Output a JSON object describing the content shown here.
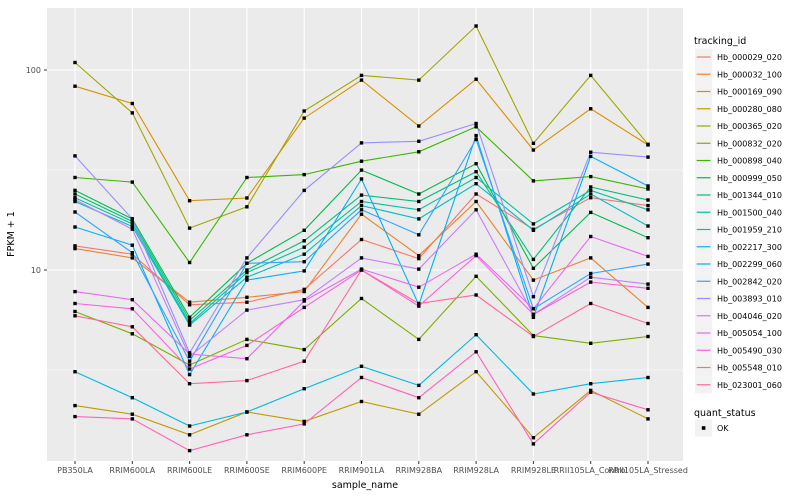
{
  "chart_data": {
    "type": "line",
    "title": "",
    "xlabel": "sample_name",
    "ylabel": "FPKM + 1",
    "y_scale": "log10",
    "ylim": [
      1.1,
      204
    ],
    "grid": true,
    "legend_position": "right",
    "panel_bg": "#EBEBEB",
    "gridline_color": "#FFFFFF",
    "point_color": "#000000",
    "axis_text_color": "#4D4D4D",
    "y_ticks": [
      {
        "label": "100",
        "value": 100
      },
      {
        "label": "10",
        "value": 10
      }
    ],
    "y_minor": [
      31.62,
      3.162
    ],
    "categories": [
      "PB350LA",
      "RRIM600LA",
      "RRIM600LE",
      "RRIM600SE",
      "RRIM600PE",
      "RRIM901LA",
      "RRIM928BA",
      "RRIM928LA",
      "RRIM928LE",
      "RRII105LA_Control",
      "RRII105LA_Stressed"
    ],
    "series": [
      {
        "name": "Hb_000029_020",
        "color": "#F8766D",
        "values": [
          13.2,
          12.0,
          6.7,
          6.9,
          8.0,
          14.2,
          11.4,
          24.0,
          16.0,
          23.0,
          21.0
        ]
      },
      {
        "name": "Hb_000032_100",
        "color": "#EA8331",
        "values": [
          12.8,
          11.5,
          6.9,
          7.3,
          7.8,
          19.0,
          11.8,
          22.0,
          8.9,
          11.5,
          6.5
        ]
      },
      {
        "name": "Hb_000169_090",
        "color": "#D89000",
        "values": [
          83,
          68,
          22.2,
          22.9,
          57.5,
          89,
          52.5,
          90,
          39.8,
          64,
          42.2
        ]
      },
      {
        "name": "Hb_000280_080",
        "color": "#C09B00",
        "values": [
          2.1,
          1.9,
          1.5,
          1.95,
          1.75,
          2.2,
          1.9,
          3.1,
          1.45,
          2.5,
          1.8
        ]
      },
      {
        "name": "Hb_000365_020",
        "color": "#A3A500",
        "values": [
          109,
          61,
          16.2,
          20.7,
          62.4,
          94,
          89,
          166,
          43,
          94,
          42.5
        ]
      },
      {
        "name": "Hb_000832_020",
        "color": "#7CAE00",
        "values": [
          6.2,
          4.8,
          3.35,
          4.5,
          4.0,
          7.2,
          4.5,
          9.3,
          4.7,
          4.3,
          4.65
        ]
      },
      {
        "name": "Hb_000898_040",
        "color": "#39B600",
        "values": [
          29,
          27.5,
          10.9,
          29,
          30,
          35,
          39,
          52,
          27.9,
          29.3,
          25.4
        ]
      },
      {
        "name": "Hb_000999_050",
        "color": "#00BB4E",
        "values": [
          25,
          18,
          5.8,
          10.8,
          15.8,
          31.6,
          24,
          34,
          10.2,
          19.4,
          14.5
        ]
      },
      {
        "name": "Hb_001344_010",
        "color": "#00BF7D",
        "values": [
          24,
          17.5,
          5.6,
          10,
          14,
          23.7,
          22,
          31,
          11.3,
          26,
          22.4
        ]
      },
      {
        "name": "Hb_001500_040",
        "color": "#00C1A3",
        "values": [
          23,
          17,
          5.4,
          9.7,
          13,
          22,
          20,
          29,
          17,
          25,
          20
        ]
      },
      {
        "name": "Hb_001959_210",
        "color": "#00BFC4",
        "values": [
          22,
          16.5,
          5.3,
          9.2,
          12,
          21,
          18,
          27,
          15.8,
          24,
          16.6
        ]
      },
      {
        "name": "Hb_002217_300",
        "color": "#00BAE0",
        "values": [
          3.1,
          2.3,
          1.66,
          1.95,
          2.55,
          3.3,
          2.65,
          4.75,
          2.4,
          2.7,
          2.9
        ]
      },
      {
        "name": "Hb_002299_060",
        "color": "#00B0F6",
        "values": [
          16.4,
          13.3,
          3.0,
          8.9,
          9.9,
          28.5,
          6.7,
          47,
          5.8,
          37,
          26.3
        ]
      },
      {
        "name": "Hb_002842_020",
        "color": "#35A2FF",
        "values": [
          19.5,
          12.2,
          3.5,
          10.8,
          11.0,
          20,
          15,
          45,
          6.4,
          9.6,
          10.7
        ]
      },
      {
        "name": "Hb_003893_010",
        "color": "#9590FF",
        "values": [
          37.2,
          18,
          3.85,
          11.5,
          25,
          43.2,
          44,
          54,
          7.35,
          38.8,
          36.7
        ]
      },
      {
        "name": "Hb_004046_020",
        "color": "#C77CFF",
        "values": [
          22.5,
          16,
          3.7,
          6.3,
          7.1,
          11.5,
          10.1,
          20,
          6.0,
          9.2,
          8.5
        ]
      },
      {
        "name": "Hb_005054_100",
        "color": "#E76BF3",
        "values": [
          7.8,
          7.1,
          3.8,
          3.6,
          7.0,
          10.1,
          8.2,
          12,
          6.4,
          14.7,
          11.7
        ]
      },
      {
        "name": "Hb_005490_030",
        "color": "#FA62DB",
        "values": [
          6.8,
          6.4,
          3.2,
          4.2,
          6.5,
          10,
          6.6,
          11.8,
          6.0,
          8.7,
          8.1
        ]
      },
      {
        "name": "Hb_005548_010",
        "color": "#FF62BC",
        "values": [
          1.85,
          1.8,
          1.25,
          1.5,
          1.7,
          2.9,
          2.3,
          3.9,
          1.35,
          2.45,
          2.0
        ]
      },
      {
        "name": "Hb_023001_060",
        "color": "#FF6A98",
        "values": [
          5.9,
          5.2,
          2.7,
          2.8,
          3.5,
          10,
          6.8,
          7.5,
          4.65,
          6.8,
          5.4
        ]
      }
    ],
    "legend": {
      "color_title": "tracking_id",
      "shape_title": "quant_status",
      "shape_items": [
        {
          "label": "OK",
          "marker": "black-square"
        }
      ],
      "key_bg": "#F2F2F2"
    }
  }
}
